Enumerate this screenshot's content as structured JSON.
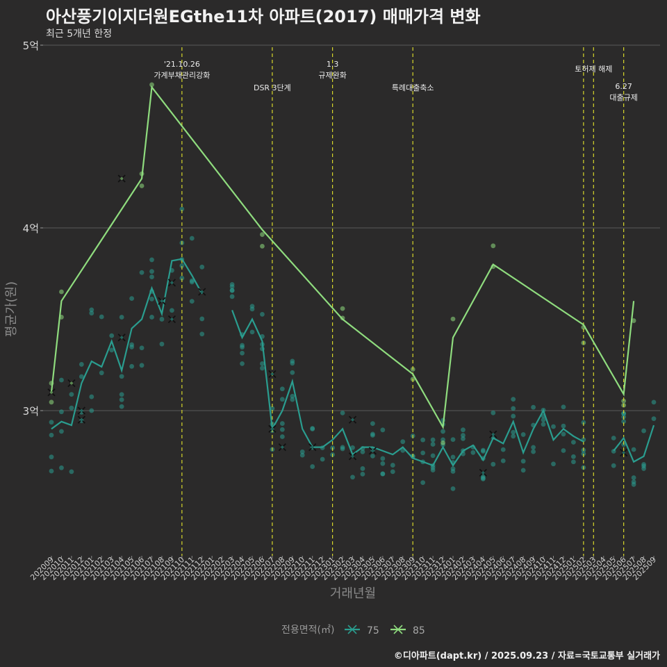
{
  "header": {
    "title": "아산풍기이지더원EGthe11차 아파트(2017) 매매가격 변화",
    "subtitle": "최근 5개년 한정"
  },
  "footer": {
    "credit": "©디아파트(dapt.kr) / 2025.09.23 / 자료=국토교통부 실거래가"
  },
  "colors": {
    "s75": "#2a9d8f",
    "s85": "#8fdc7e",
    "vline": "#d8d82a",
    "grid": "#5a5a5a",
    "bg": "#2b2a2a"
  },
  "chart_data": {
    "type": "line",
    "title": "아산풍기이지더원EGthe11차 아파트(2017) 매매가격 변화",
    "subtitle": "최근 5개년 한정",
    "xlabel": "거래년월",
    "ylabel": "평균가(원)",
    "ylim": [
      2.25,
      5.0
    ],
    "yticks": [
      {
        "value": 3,
        "label": "3억"
      },
      {
        "value": 4,
        "label": "4억"
      },
      {
        "value": 5,
        "label": "5억"
      }
    ],
    "categories": [
      "202009",
      "202010",
      "202011",
      "202012",
      "202101",
      "202102",
      "202103",
      "202104",
      "202105",
      "202106",
      "202107",
      "202108",
      "202109",
      "202110",
      "202111",
      "202112",
      "202201",
      "202202",
      "202203",
      "202204",
      "202205",
      "202206",
      "202207",
      "202208",
      "202209",
      "202210",
      "202211",
      "202212",
      "202301",
      "202302",
      "202303",
      "202304",
      "202305",
      "202306",
      "202307",
      "202308",
      "202309",
      "202310",
      "202311",
      "202312",
      "202401",
      "202402",
      "202403",
      "202404",
      "202405",
      "202406",
      "202407",
      "202408",
      "202409",
      "202410",
      "202411",
      "202412",
      "202501",
      "202502",
      "202503",
      "202504",
      "202505",
      "202506",
      "202507",
      "202508",
      "202509"
    ],
    "legend": {
      "title": "전용면적(㎡)",
      "items": [
        "75",
        "85"
      ],
      "position": "bottom"
    },
    "series": [
      {
        "name": "75",
        "color": "#2a9d8f",
        "values": [
          2.9,
          2.94,
          2.92,
          3.15,
          3.27,
          3.24,
          3.38,
          3.22,
          3.45,
          3.5,
          3.67,
          3.53,
          3.82,
          3.83,
          3.74,
          3.64,
          null,
          null,
          3.55,
          3.4,
          3.5,
          3.38,
          2.9,
          3.0,
          3.16,
          2.9,
          2.8,
          2.8,
          2.84,
          2.9,
          2.76,
          2.8,
          2.8,
          2.78,
          2.76,
          2.8,
          2.74,
          2.72,
          2.7,
          2.8,
          2.7,
          2.78,
          2.81,
          2.73,
          2.85,
          2.82,
          2.94,
          2.77,
          2.9,
          3.0,
          2.84,
          2.9,
          2.86,
          2.83,
          null,
          null,
          2.78,
          2.85,
          2.72,
          2.75,
          2.92
        ]
      },
      {
        "name": "85",
        "color": "#8fdc7e",
        "values": [
          3.1,
          3.6,
          null,
          null,
          null,
          null,
          null,
          null,
          null,
          4.27,
          4.77,
          null,
          null,
          null,
          null,
          null,
          null,
          null,
          null,
          null,
          null,
          3.99,
          null,
          null,
          null,
          null,
          null,
          null,
          null,
          3.5,
          null,
          null,
          null,
          null,
          null,
          null,
          3.2,
          null,
          null,
          2.91,
          3.4,
          null,
          null,
          null,
          3.8,
          null,
          null,
          null,
          null,
          null,
          null,
          null,
          null,
          3.47,
          null,
          null,
          null,
          3.09,
          3.6,
          null,
          null
        ]
      }
    ],
    "x_marks": [
      {
        "x": "202009",
        "y": 3.1,
        "series": "85"
      },
      {
        "x": "202011",
        "y": 3.15,
        "series": "85"
      },
      {
        "x": "202012",
        "y": 2.95,
        "series": "75"
      },
      {
        "x": "202012",
        "y": 3.0,
        "series": "75"
      },
      {
        "x": "202104",
        "y": 4.27,
        "series": "85"
      },
      {
        "x": "202104",
        "y": 3.4,
        "series": "75"
      },
      {
        "x": "202108",
        "y": 3.6,
        "series": "75"
      },
      {
        "x": "202109",
        "y": 3.5,
        "series": "75"
      },
      {
        "x": "202109",
        "y": 3.7,
        "series": "75"
      },
      {
        "x": "202112",
        "y": 3.65,
        "series": "75"
      },
      {
        "x": "202207",
        "y": 3.2,
        "series": "75"
      },
      {
        "x": "202207",
        "y": 2.9,
        "series": "75"
      },
      {
        "x": "202208",
        "y": 2.8,
        "series": "75"
      },
      {
        "x": "202211",
        "y": 2.8,
        "series": "75"
      },
      {
        "x": "202303",
        "y": 2.95,
        "series": "75"
      },
      {
        "x": "202303",
        "y": 2.75,
        "series": "75"
      },
      {
        "x": "202305",
        "y": 2.78,
        "series": "75"
      },
      {
        "x": "202404",
        "y": 2.66,
        "series": "75"
      },
      {
        "x": "202405",
        "y": 2.87,
        "series": "75"
      },
      {
        "x": "202506",
        "y": 2.77,
        "series": "75"
      }
    ],
    "events": [
      {
        "x": "202110",
        "label": [
          "'21.10.26",
          "가계부채관리강화"
        ],
        "level": 0
      },
      {
        "x": "202207",
        "label": [
          "DSR 3단계"
        ],
        "level": 2
      },
      {
        "x": "202301",
        "label": [
          "1.3",
          "규제완화"
        ],
        "level": 0
      },
      {
        "x": "202309",
        "label": [
          "특례대출축소"
        ],
        "level": 2
      },
      {
        "x": "202502",
        "label": [],
        "level": 1
      },
      {
        "x": "202503",
        "label": [
          "토허제 해제"
        ],
        "level": 1
      },
      {
        "x": "202506",
        "label": [
          "6.27",
          "대출규제"
        ],
        "level": 3
      }
    ]
  }
}
